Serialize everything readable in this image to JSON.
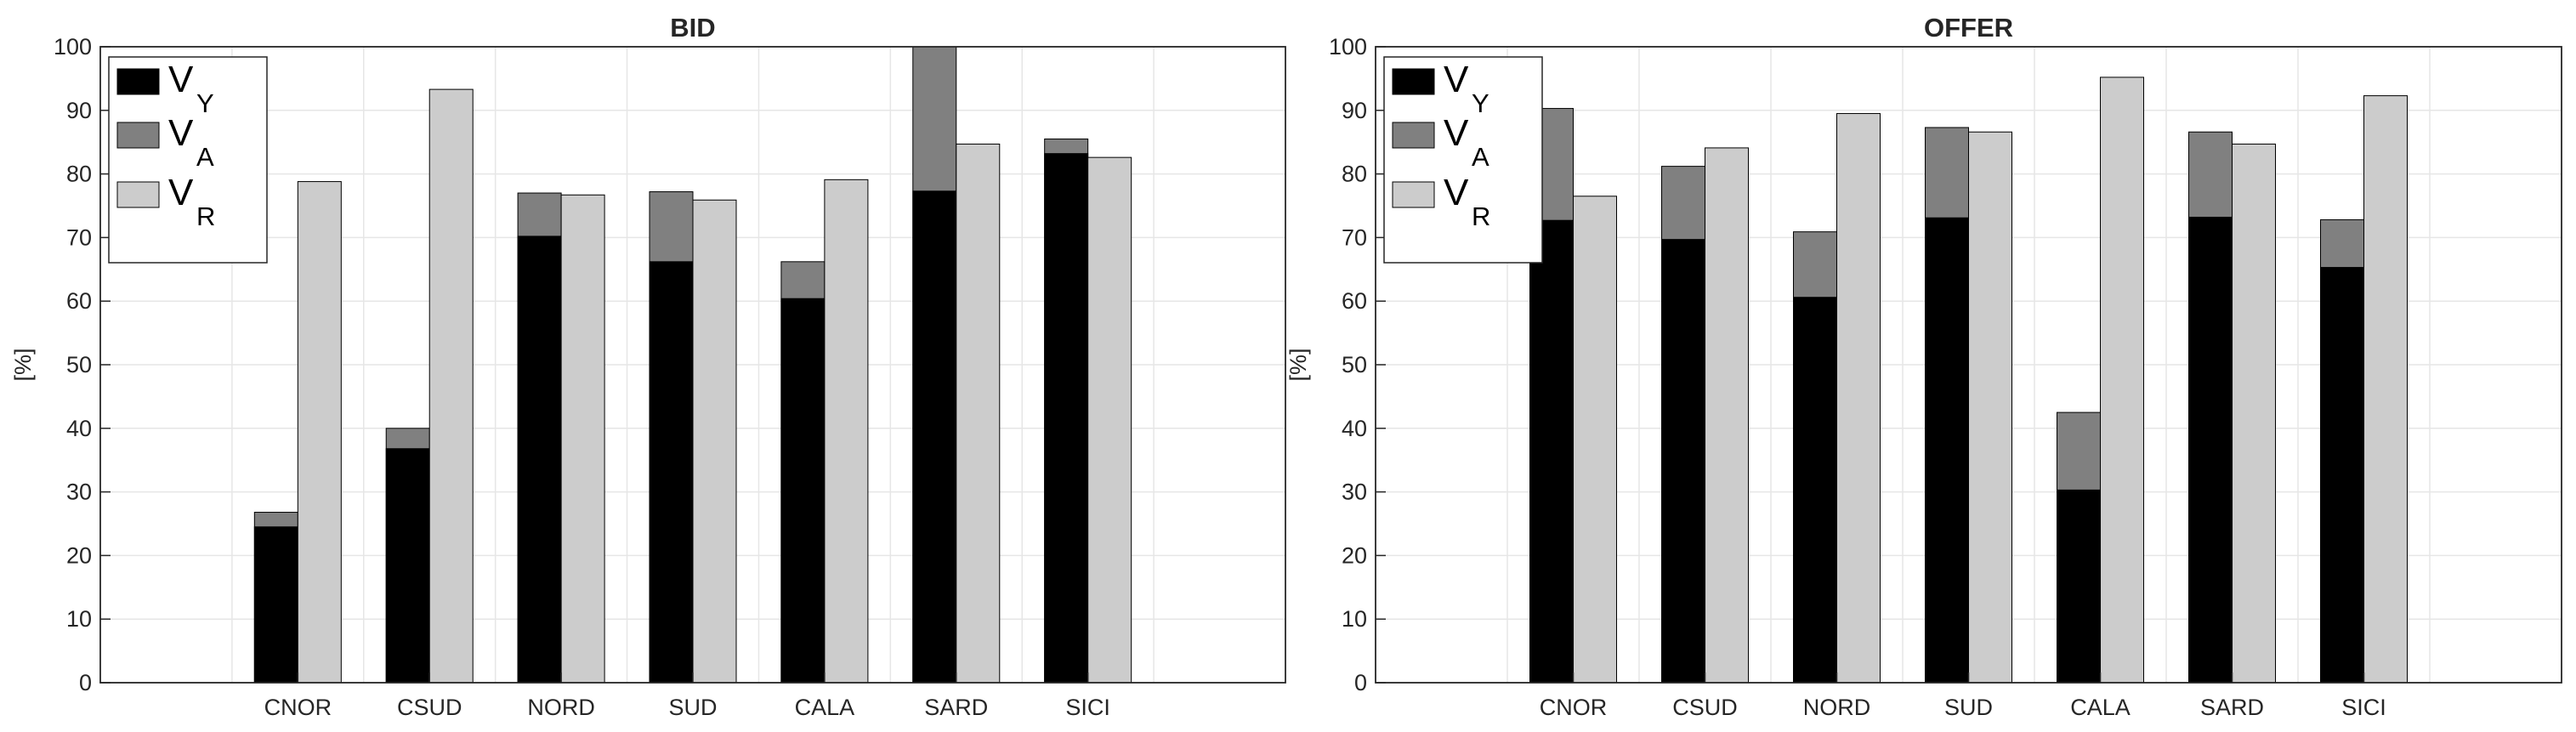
{
  "chart_data": [
    {
      "type": "bar",
      "title": "BID",
      "xlabel": "",
      "ylabel": "[%]",
      "ylim": [
        0,
        100
      ],
      "yticks": [
        "0",
        "10",
        "20",
        "30",
        "40",
        "50",
        "60",
        "70",
        "80",
        "90",
        "100"
      ],
      "categories": [
        "CNOR",
        "CSUD",
        "NORD",
        "SUD",
        "CALA",
        "SARD",
        "SICI"
      ],
      "grid": true,
      "legend": {
        "placement": "top-left",
        "entries": [
          {
            "main": "V",
            "sub": "Y"
          },
          {
            "main": "V",
            "sub": "A"
          },
          {
            "main": "V",
            "sub": "R"
          }
        ]
      },
      "series": [
        {
          "name": "VY",
          "values": [
            24.5,
            36.8,
            70.2,
            66.2,
            60.4,
            77.3,
            83.2
          ]
        },
        {
          "name": "VA",
          "values": [
            26.8,
            40.0,
            77.0,
            77.2,
            66.2,
            100,
            85.5
          ]
        },
        {
          "name": "VR",
          "values": [
            78.8,
            93.3,
            76.7,
            75.9,
            79.1,
            84.7,
            82.6
          ]
        }
      ]
    },
    {
      "type": "bar",
      "title": "OFFER",
      "xlabel": "",
      "ylabel": "[%]",
      "ylim": [
        0,
        100
      ],
      "yticks": [
        "0",
        "10",
        "20",
        "30",
        "40",
        "50",
        "60",
        "70",
        "80",
        "90",
        "100"
      ],
      "categories": [
        "CNOR",
        "CSUD",
        "NORD",
        "SUD",
        "CALA",
        "SARD",
        "SICI"
      ],
      "grid": true,
      "legend": {
        "placement": "top-left",
        "entries": [
          {
            "main": "V",
            "sub": "Y"
          },
          {
            "main": "V",
            "sub": "A"
          },
          {
            "main": "V",
            "sub": "R"
          }
        ]
      },
      "series": [
        {
          "name": "VY",
          "values": [
            72.7,
            69.7,
            60.6,
            73.1,
            30.3,
            73.2,
            65.3
          ]
        },
        {
          "name": "VA",
          "values": [
            90.3,
            81.2,
            70.9,
            87.3,
            42.5,
            86.6,
            72.8
          ]
        },
        {
          "name": "VR",
          "values": [
            76.5,
            84.1,
            89.5,
            86.6,
            95.2,
            84.7,
            92.3
          ]
        }
      ]
    }
  ],
  "colors": {
    "VY": "#000000",
    "VA": "#808080",
    "VR": "#cccccc",
    "axis": "#262626",
    "grid": "#e6e6e6"
  }
}
